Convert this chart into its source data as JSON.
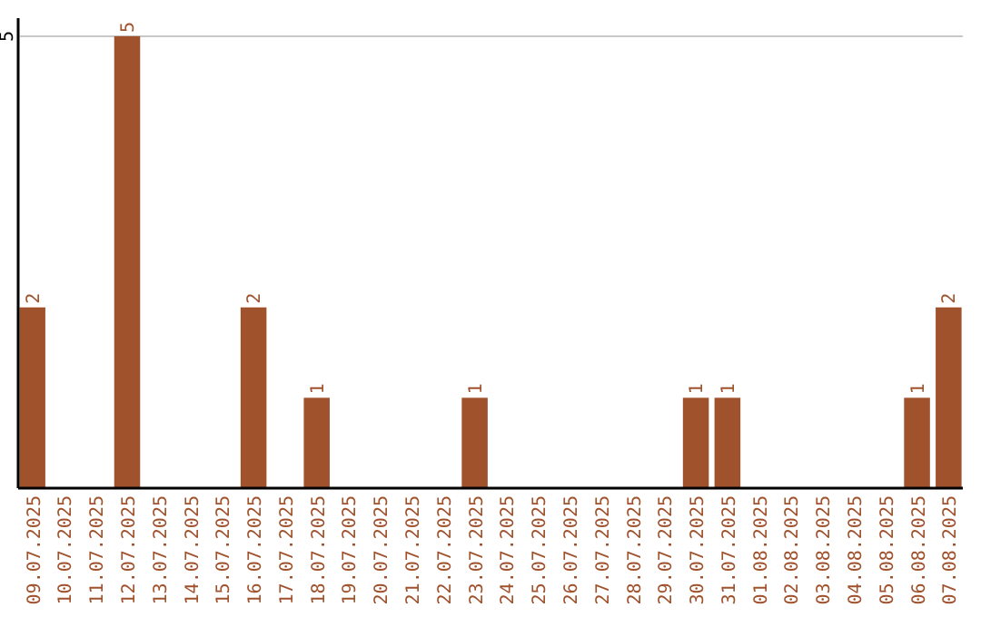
{
  "chart_data": {
    "type": "bar",
    "categories": [
      "09.07.2025",
      "10.07.2025",
      "11.07.2025",
      "12.07.2025",
      "13.07.2025",
      "14.07.2025",
      "15.07.2025",
      "16.07.2025",
      "17.07.2025",
      "18.07.2025",
      "19.07.2025",
      "20.07.2025",
      "21.07.2025",
      "22.07.2025",
      "23.07.2025",
      "24.07.2025",
      "25.07.2025",
      "26.07.2025",
      "27.07.2025",
      "28.07.2025",
      "29.07.2025",
      "30.07.2025",
      "31.07.2025",
      "01.08.2025",
      "02.08.2025",
      "03.08.2025",
      "04.08.2025",
      "05.08.2025",
      "06.08.2025",
      "07.08.2025"
    ],
    "values": [
      2,
      0,
      0,
      5,
      0,
      0,
      0,
      2,
      0,
      1,
      0,
      0,
      0,
      0,
      1,
      0,
      0,
      0,
      0,
      0,
      0,
      1,
      1,
      0,
      0,
      0,
      0,
      0,
      1,
      2
    ],
    "value_labels": [
      "2",
      null,
      null,
      "5",
      null,
      null,
      null,
      "2",
      null,
      "1",
      null,
      null,
      null,
      null,
      "1",
      null,
      null,
      null,
      null,
      null,
      null,
      "1",
      "1",
      null,
      null,
      null,
      null,
      null,
      "1",
      "2"
    ],
    "color": "#a0522d",
    "ylim": [
      0,
      5.2
    ],
    "yticks": [
      5
    ],
    "grid": "y"
  }
}
